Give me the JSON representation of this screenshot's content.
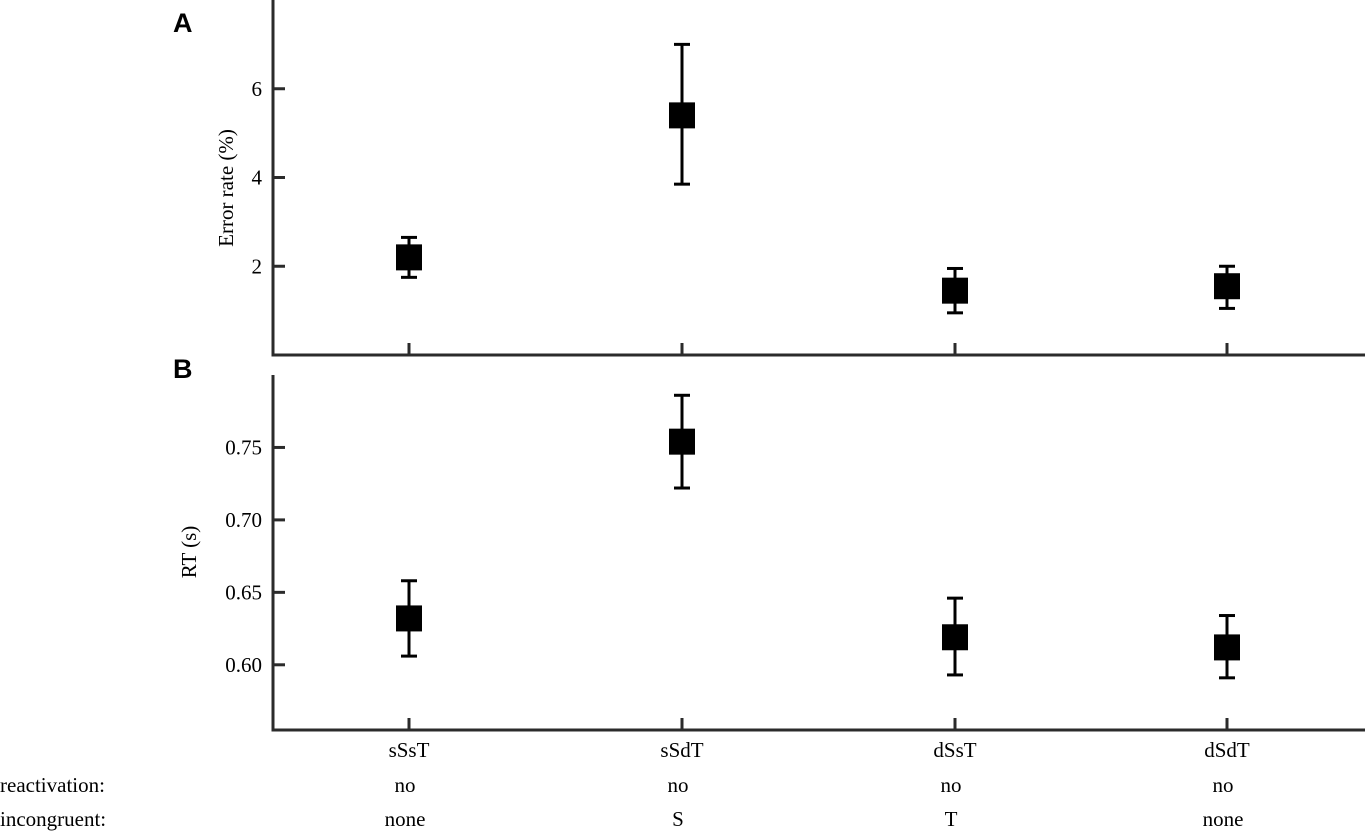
{
  "chart_data": [
    {
      "type": "scatter",
      "panel": "A",
      "ylabel": "Error rate (%)",
      "xlabel": "",
      "ylim": [
        0,
        8
      ],
      "yticks": [
        2,
        4,
        6
      ],
      "categories": [
        "sSsT",
        "sSdT",
        "dSsT",
        "dSdT"
      ],
      "values": [
        2.2,
        5.4,
        1.45,
        1.55
      ],
      "error_low": [
        1.75,
        3.85,
        0.95,
        1.05
      ],
      "error_high": [
        2.65,
        7.0,
        1.95,
        2.0
      ]
    },
    {
      "type": "scatter",
      "panel": "B",
      "ylabel": "RT (s)",
      "xlabel": "",
      "ylim": [
        0.555,
        0.8
      ],
      "yticks": [
        0.6,
        0.65,
        0.7,
        0.75
      ],
      "ytick_labels": [
        "0.60",
        "0.65",
        "0.70",
        "0.75"
      ],
      "categories": [
        "sSsT",
        "sSdT",
        "dSsT",
        "dSdT"
      ],
      "values": [
        0.632,
        0.754,
        0.619,
        0.612
      ],
      "error_low": [
        0.606,
        0.722,
        0.593,
        0.591
      ],
      "error_high": [
        0.658,
        0.786,
        0.646,
        0.634
      ]
    }
  ],
  "condition_rows": [
    {
      "label": "reactivation:",
      "values": [
        "no",
        "no",
        "no",
        "no"
      ]
    },
    {
      "label": "incongruent:",
      "values": [
        "none",
        "S",
        "T",
        "none"
      ]
    }
  ]
}
